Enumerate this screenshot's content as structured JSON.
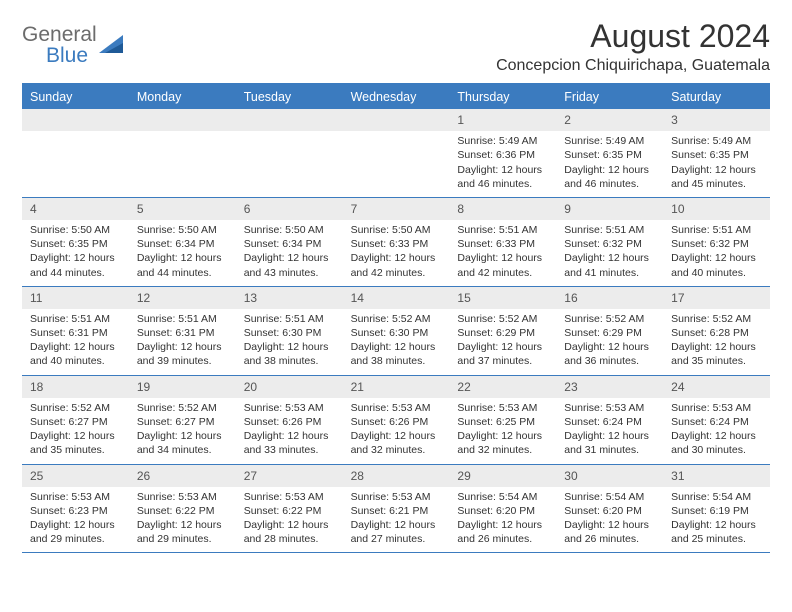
{
  "logo": {
    "word1": "General",
    "word2": "Blue"
  },
  "title": "August 2024",
  "location": "Concepcion Chiquirichapa, Guatemala",
  "colors": {
    "accent": "#3b7bbf",
    "header_bg": "#3b7bbf",
    "daynum_bg": "#ececec",
    "text": "#333333",
    "logo_gray": "#6c6c6c"
  },
  "weekdays": [
    "Sunday",
    "Monday",
    "Tuesday",
    "Wednesday",
    "Thursday",
    "Friday",
    "Saturday"
  ],
  "weeks": [
    [
      null,
      null,
      null,
      null,
      {
        "n": "1",
        "sr": "5:49 AM",
        "ss": "6:36 PM",
        "dl": "12 hours and 46 minutes."
      },
      {
        "n": "2",
        "sr": "5:49 AM",
        "ss": "6:35 PM",
        "dl": "12 hours and 46 minutes."
      },
      {
        "n": "3",
        "sr": "5:49 AM",
        "ss": "6:35 PM",
        "dl": "12 hours and 45 minutes."
      }
    ],
    [
      {
        "n": "4",
        "sr": "5:50 AM",
        "ss": "6:35 PM",
        "dl": "12 hours and 44 minutes."
      },
      {
        "n": "5",
        "sr": "5:50 AM",
        "ss": "6:34 PM",
        "dl": "12 hours and 44 minutes."
      },
      {
        "n": "6",
        "sr": "5:50 AM",
        "ss": "6:34 PM",
        "dl": "12 hours and 43 minutes."
      },
      {
        "n": "7",
        "sr": "5:50 AM",
        "ss": "6:33 PM",
        "dl": "12 hours and 42 minutes."
      },
      {
        "n": "8",
        "sr": "5:51 AM",
        "ss": "6:33 PM",
        "dl": "12 hours and 42 minutes."
      },
      {
        "n": "9",
        "sr": "5:51 AM",
        "ss": "6:32 PM",
        "dl": "12 hours and 41 minutes."
      },
      {
        "n": "10",
        "sr": "5:51 AM",
        "ss": "6:32 PM",
        "dl": "12 hours and 40 minutes."
      }
    ],
    [
      {
        "n": "11",
        "sr": "5:51 AM",
        "ss": "6:31 PM",
        "dl": "12 hours and 40 minutes."
      },
      {
        "n": "12",
        "sr": "5:51 AM",
        "ss": "6:31 PM",
        "dl": "12 hours and 39 minutes."
      },
      {
        "n": "13",
        "sr": "5:51 AM",
        "ss": "6:30 PM",
        "dl": "12 hours and 38 minutes."
      },
      {
        "n": "14",
        "sr": "5:52 AM",
        "ss": "6:30 PM",
        "dl": "12 hours and 38 minutes."
      },
      {
        "n": "15",
        "sr": "5:52 AM",
        "ss": "6:29 PM",
        "dl": "12 hours and 37 minutes."
      },
      {
        "n": "16",
        "sr": "5:52 AM",
        "ss": "6:29 PM",
        "dl": "12 hours and 36 minutes."
      },
      {
        "n": "17",
        "sr": "5:52 AM",
        "ss": "6:28 PM",
        "dl": "12 hours and 35 minutes."
      }
    ],
    [
      {
        "n": "18",
        "sr": "5:52 AM",
        "ss": "6:27 PM",
        "dl": "12 hours and 35 minutes."
      },
      {
        "n": "19",
        "sr": "5:52 AM",
        "ss": "6:27 PM",
        "dl": "12 hours and 34 minutes."
      },
      {
        "n": "20",
        "sr": "5:53 AM",
        "ss": "6:26 PM",
        "dl": "12 hours and 33 minutes."
      },
      {
        "n": "21",
        "sr": "5:53 AM",
        "ss": "6:26 PM",
        "dl": "12 hours and 32 minutes."
      },
      {
        "n": "22",
        "sr": "5:53 AM",
        "ss": "6:25 PM",
        "dl": "12 hours and 32 minutes."
      },
      {
        "n": "23",
        "sr": "5:53 AM",
        "ss": "6:24 PM",
        "dl": "12 hours and 31 minutes."
      },
      {
        "n": "24",
        "sr": "5:53 AM",
        "ss": "6:24 PM",
        "dl": "12 hours and 30 minutes."
      }
    ],
    [
      {
        "n": "25",
        "sr": "5:53 AM",
        "ss": "6:23 PM",
        "dl": "12 hours and 29 minutes."
      },
      {
        "n": "26",
        "sr": "5:53 AM",
        "ss": "6:22 PM",
        "dl": "12 hours and 29 minutes."
      },
      {
        "n": "27",
        "sr": "5:53 AM",
        "ss": "6:22 PM",
        "dl": "12 hours and 28 minutes."
      },
      {
        "n": "28",
        "sr": "5:53 AM",
        "ss": "6:21 PM",
        "dl": "12 hours and 27 minutes."
      },
      {
        "n": "29",
        "sr": "5:54 AM",
        "ss": "6:20 PM",
        "dl": "12 hours and 26 minutes."
      },
      {
        "n": "30",
        "sr": "5:54 AM",
        "ss": "6:20 PM",
        "dl": "12 hours and 26 minutes."
      },
      {
        "n": "31",
        "sr": "5:54 AM",
        "ss": "6:19 PM",
        "dl": "12 hours and 25 minutes."
      }
    ]
  ],
  "labels": {
    "sunrise": "Sunrise:",
    "sunset": "Sunset:",
    "daylight": "Daylight:"
  }
}
